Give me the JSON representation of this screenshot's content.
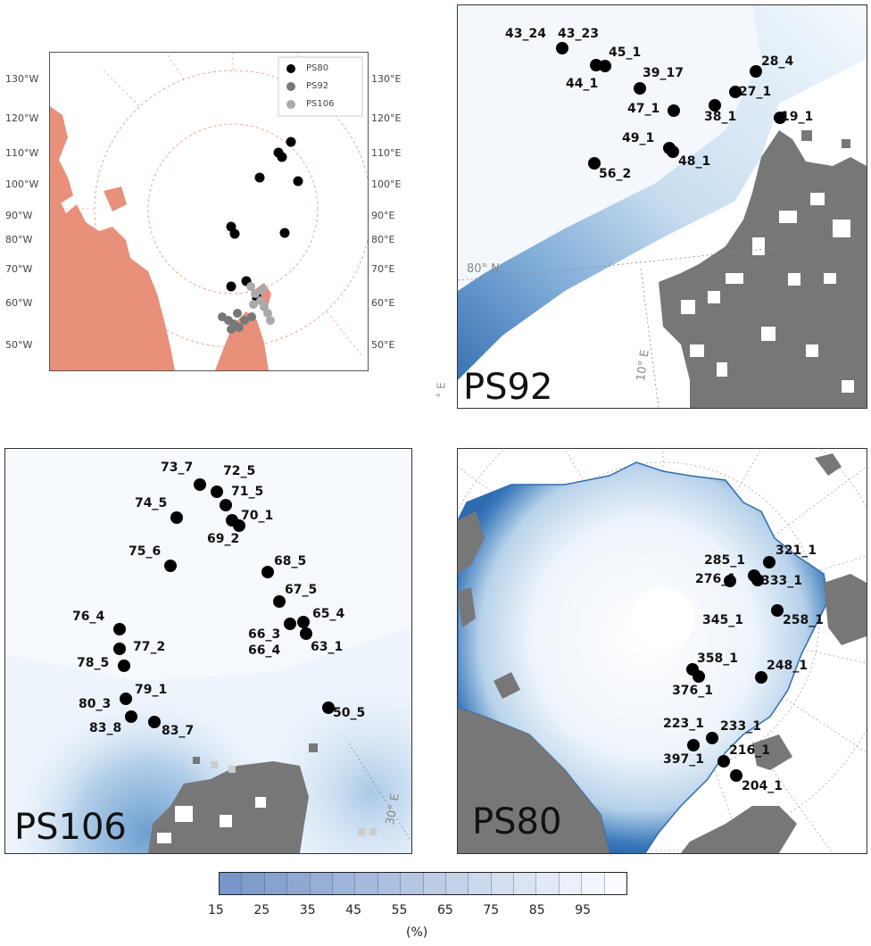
{
  "overview": {
    "legend": [
      {
        "label": "PS80",
        "color": "#000000"
      },
      {
        "label": "PS92",
        "color": "#777777"
      },
      {
        "label": "PS106",
        "color": "#aaaaaa"
      }
    ],
    "left_labels": [
      "130°W",
      "120°W",
      "110°W",
      "100°W",
      "90°W",
      "80°W",
      "70°W",
      "60°W",
      "50°W"
    ],
    "right_labels": [
      "130°E",
      "120°E",
      "110°E",
      "100°E",
      "90°E",
      "80°E",
      "70°E",
      "60°E",
      "50°E"
    ],
    "land_color": "#e8907a"
  },
  "ps92": {
    "title": "PS92",
    "grid_label_lat": "80° N",
    "grid_label_lon": "10° E",
    "edge_label": "° E",
    "stations": [
      "43_24",
      "43_23",
      "45_1",
      "44_1",
      "39_17",
      "28_4",
      "27_1",
      "47_1",
      "38_1",
      "19_1",
      "49_1",
      "48_1",
      "56_2"
    ]
  },
  "ps106": {
    "title": "PS106",
    "grid_label_lon": "30° E",
    "stations": [
      "73_7",
      "72_5",
      "71_5",
      "74_5",
      "70_1",
      "69_2",
      "75_6",
      "68_5",
      "67_5",
      "76_4",
      "65_4",
      "66_3",
      "66_4",
      "63_1",
      "77_2",
      "78_5",
      "79_1",
      "80_3",
      "83_8",
      "83_7",
      "50_5"
    ]
  },
  "ps80": {
    "title": "PS80",
    "stations": [
      "321_1",
      "285_1",
      "276_1",
      "333_1",
      "345_1",
      "258_1",
      "358_1",
      "248_1",
      "376_1",
      "223_1",
      "233_1",
      "397_1",
      "216_1",
      "204_1"
    ]
  },
  "colorbar": {
    "ticks": [
      "15",
      "25",
      "35",
      "45",
      "55",
      "65",
      "75",
      "85",
      "95"
    ],
    "unit": "(%)"
  }
}
